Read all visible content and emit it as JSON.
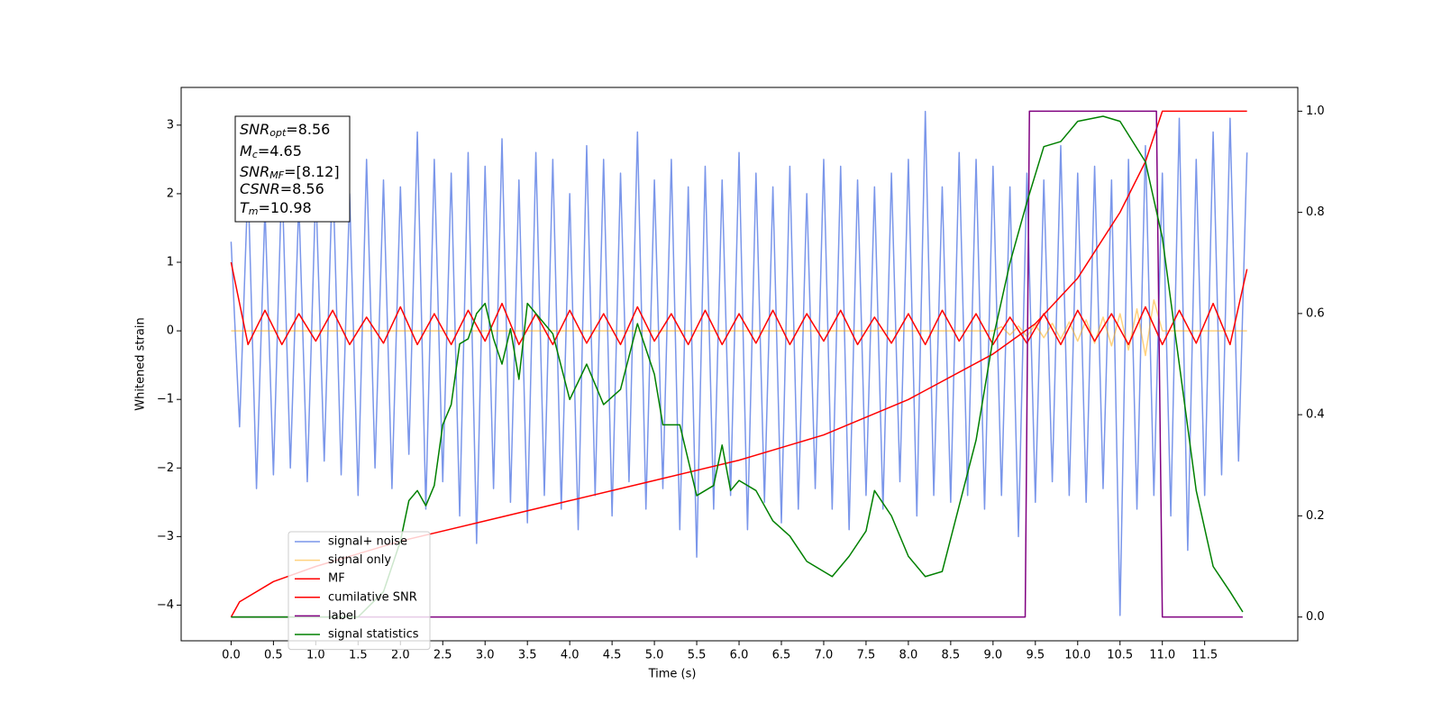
{
  "chart_data": {
    "type": "line",
    "xlabel": "Time (s)",
    "ylabel": "Whitened strain",
    "xlim": [
      -0.59,
      12.6
    ],
    "ylim": [
      -4.52,
      3.55
    ],
    "y2lim": [
      -0.047,
      1.047
    ],
    "xticks": [
      {
        "value": 0,
        "label": "0.0"
      },
      0.5,
      {
        "value": 1,
        "label": "1.0"
      },
      1.5,
      {
        "value": 2,
        "label": "2.0"
      },
      2.5,
      {
        "value": 3,
        "label": "3.0"
      },
      3.5,
      {
        "value": 4,
        "label": "4.0"
      },
      4.5,
      {
        "value": 5,
        "label": "5.0"
      },
      5.5,
      {
        "value": 6,
        "label": "6.0"
      },
      6.5,
      {
        "value": 7,
        "label": "7.0"
      },
      7.5,
      {
        "value": 8,
        "label": "8.0"
      },
      8.5,
      {
        "value": 9,
        "label": "9.0"
      },
      9.5,
      {
        "value": 10,
        "label": "10.0"
      },
      10.5,
      {
        "value": 11,
        "label": "11.0"
      },
      11.5
    ],
    "yticks": [
      {
        "value": -4,
        "label": "−4"
      },
      {
        "value": -3,
        "label": "−3"
      },
      {
        "value": -2,
        "label": "−2"
      },
      {
        "value": -1,
        "label": "−1"
      },
      0,
      1,
      2,
      3
    ],
    "y2ticks": [
      {
        "value": 0,
        "label": "0.0"
      },
      0.2,
      0.4,
      0.6,
      0.8,
      {
        "value": 1,
        "label": "1.0"
      }
    ],
    "legend": "lower left",
    "annotation": [
      {
        "symbol": "SNR",
        "sub": "opt",
        "text": "=8.56"
      },
      {
        "symbol": "M",
        "sub": "c",
        "text": "=4.65"
      },
      {
        "symbol": "SNR",
        "sub": "MF",
        "text": "=[8.12]"
      },
      {
        "symbol": "CSNR",
        "text": "=8.56"
      },
      {
        "symbol": "T",
        "sub": "m",
        "text": "=10.98"
      }
    ],
    "series": [
      {
        "name": "signal+ noise",
        "color": "#4169e1",
        "alpha": 0.7,
        "x": [
          0,
          0.1,
          0.2,
          0.3,
          0.4,
          0.5,
          0.6,
          0.7,
          0.8,
          0.9,
          1,
          1.1,
          1.2,
          1.3,
          1.4,
          1.5,
          1.6,
          1.7,
          1.8,
          1.9,
          2,
          2.1,
          2.2,
          2.3,
          2.4,
          2.5,
          2.6,
          2.7,
          2.8,
          2.9,
          3,
          3.1,
          3.2,
          3.3,
          3.4,
          3.5,
          3.6,
          3.7,
          3.8,
          3.9,
          4,
          4.1,
          4.2,
          4.3,
          4.4,
          4.5,
          4.6,
          4.7,
          4.8,
          4.9,
          5,
          5.1,
          5.2,
          5.3,
          5.4,
          5.5,
          5.6,
          5.7,
          5.8,
          5.9,
          6,
          6.1,
          6.2,
          6.3,
          6.4,
          6.5,
          6.6,
          6.7,
          6.8,
          6.9,
          7,
          7.1,
          7.2,
          7.3,
          7.4,
          7.5,
          7.6,
          7.7,
          7.8,
          7.9,
          8,
          8.1,
          8.2,
          8.3,
          8.4,
          8.5,
          8.6,
          8.7,
          8.8,
          8.9,
          9,
          9.1,
          9.2,
          9.3,
          9.4,
          9.5,
          9.6,
          9.7,
          9.8,
          9.9,
          10,
          10.1,
          10.2,
          10.3,
          10.4,
          10.5,
          10.6,
          10.7,
          10.8,
          10.9,
          11,
          11.1,
          11.2,
          11.3,
          11.4,
          11.5,
          11.6,
          11.7,
          11.8,
          11.9,
          12
        ],
        "values": [
          1.3,
          -1.4,
          2.2,
          -2.3,
          1.8,
          -2.1,
          2.3,
          -2.0,
          1.9,
          -2.2,
          2.1,
          -1.9,
          2.4,
          -2.1,
          2.0,
          -2.4,
          2.5,
          -2.0,
          2.2,
          -2.3,
          2.1,
          -1.8,
          2.9,
          -2.6,
          2.5,
          -2.2,
          2.3,
          -2.7,
          2.6,
          -3.1,
          2.4,
          -2.3,
          2.8,
          -2.5,
          2.2,
          -2.8,
          2.6,
          -2.4,
          2.5,
          -2.6,
          2.0,
          -2.9,
          2.7,
          -2.4,
          2.5,
          -2.7,
          2.3,
          -2.2,
          2.9,
          -2.6,
          2.2,
          -2.3,
          2.5,
          -2.9,
          2.1,
          -3.3,
          2.4,
          -2.6,
          2.2,
          -2.4,
          2.6,
          -2.9,
          2.3,
          -2.5,
          2.1,
          -2.8,
          2.4,
          -2.6,
          2.0,
          -2.3,
          2.5,
          -2.6,
          2.4,
          -2.9,
          2.2,
          -2.4,
          2.1,
          -2.6,
          2.3,
          -2.2,
          2.5,
          -2.7,
          3.2,
          -2.4,
          2.1,
          -2.5,
          2.6,
          -2.4,
          2.5,
          -2.6,
          2.4,
          -2.4,
          2.1,
          -3.0,
          2.3,
          -2.5,
          2.2,
          -2.2,
          2.7,
          -2.4,
          2.3,
          -2.5,
          2.4,
          -2.3,
          2.2,
          -4.15,
          2.5,
          -2.6,
          2.7,
          -2.4,
          2.3,
          -2.7,
          3.1,
          -3.2,
          2.5,
          -2.4,
          2.9,
          -2.1,
          3.1,
          -1.9,
          2.6
        ]
      },
      {
        "name": "signal only",
        "color": "#ffa500",
        "alpha": 0.5,
        "x": [
          0,
          9.0,
          9.1,
          9.2,
          9.3,
          9.4,
          9.5,
          9.6,
          9.7,
          9.8,
          9.9,
          10.0,
          10.1,
          10.2,
          10.3,
          10.4,
          10.5,
          10.6,
          10.7,
          10.8,
          10.9,
          11.0,
          12.0
        ],
        "values": [
          0,
          0,
          0.06,
          -0.06,
          0.07,
          -0.08,
          0.09,
          -0.1,
          0.11,
          -0.12,
          0.13,
          -0.15,
          0.16,
          -0.18,
          0.2,
          -0.22,
          0.25,
          -0.28,
          0.32,
          -0.36,
          0.45,
          0,
          0
        ]
      },
      {
        "name": "MF",
        "color": "#ff0000",
        "x": [
          0,
          0.2,
          0.4,
          0.6,
          0.8,
          1,
          1.2,
          1.4,
          1.6,
          1.8,
          2,
          2.2,
          2.4,
          2.6,
          2.8,
          3,
          3.2,
          3.4,
          3.6,
          3.8,
          4,
          4.2,
          4.4,
          4.6,
          4.8,
          5,
          5.2,
          5.4,
          5.6,
          5.8,
          6,
          6.2,
          6.4,
          6.6,
          6.8,
          7,
          7.2,
          7.4,
          7.6,
          7.8,
          8,
          8.2,
          8.4,
          8.6,
          8.8,
          9,
          9.2,
          9.4,
          9.6,
          9.8,
          10,
          10.2,
          10.4,
          10.6,
          10.8,
          11,
          11.2,
          11.4,
          11.6,
          11.8,
          12
        ],
        "values": [
          1.0,
          -0.2,
          0.3,
          -0.2,
          0.25,
          -0.15,
          0.3,
          -0.2,
          0.2,
          -0.18,
          0.35,
          -0.2,
          0.25,
          -0.2,
          0.3,
          -0.15,
          0.4,
          -0.2,
          0.25,
          -0.2,
          0.3,
          -0.18,
          0.25,
          -0.2,
          0.35,
          -0.15,
          0.25,
          -0.2,
          0.3,
          -0.2,
          0.25,
          -0.18,
          0.3,
          -0.2,
          0.25,
          -0.15,
          0.3,
          -0.2,
          0.2,
          -0.18,
          0.25,
          -0.2,
          0.3,
          -0.15,
          0.25,
          -0.2,
          0.2,
          -0.18,
          0.25,
          -0.2,
          0.3,
          -0.15,
          0.25,
          -0.2,
          0.35,
          -0.2,
          0.3,
          -0.18,
          0.4,
          -0.2,
          0.9
        ]
      },
      {
        "name": "cumilative SNR",
        "color": "#ff0000",
        "axis": "y2",
        "x": [
          0,
          0.1,
          0.5,
          1,
          2,
          3,
          4,
          5,
          6,
          7,
          8,
          9,
          9.5,
          10,
          10.5,
          10.8,
          11.0,
          12.0
        ],
        "values": [
          0,
          0.03,
          0.07,
          0.1,
          0.15,
          0.19,
          0.23,
          0.27,
          0.31,
          0.36,
          0.43,
          0.52,
          0.58,
          0.67,
          0.8,
          0.9,
          1,
          1
        ]
      },
      {
        "name": "label",
        "color": "#800080",
        "axis": "y2",
        "x": [
          0,
          9.38,
          9.43,
          10.93,
          11.0,
          11.95
        ],
        "values": [
          0,
          0,
          1,
          1,
          0,
          0
        ]
      },
      {
        "name": "signal statistics",
        "color": "#008000",
        "axis": "y2",
        "x": [
          0,
          1.5,
          1.8,
          2.0,
          2.1,
          2.2,
          2.3,
          2.4,
          2.5,
          2.6,
          2.7,
          2.8,
          2.9,
          3.0,
          3.1,
          3.2,
          3.3,
          3.4,
          3.5,
          3.6,
          3.8,
          4.0,
          4.2,
          4.4,
          4.6,
          4.8,
          5.0,
          5.1,
          5.3,
          5.5,
          5.7,
          5.8,
          5.9,
          6.0,
          6.2,
          6.4,
          6.6,
          6.8,
          7.0,
          7.1,
          7.3,
          7.5,
          7.6,
          7.8,
          8.0,
          8.2,
          8.4,
          8.6,
          8.8,
          9.0,
          9.2,
          9.4,
          9.6,
          9.8,
          10.0,
          10.3,
          10.5,
          10.8,
          11.0,
          11.2,
          11.4,
          11.6,
          11.8,
          11.95
        ],
        "values": [
          0,
          0,
          0.05,
          0.15,
          0.23,
          0.25,
          0.22,
          0.26,
          0.38,
          0.42,
          0.54,
          0.55,
          0.6,
          0.62,
          0.55,
          0.5,
          0.57,
          0.47,
          0.62,
          0.6,
          0.56,
          0.43,
          0.5,
          0.42,
          0.45,
          0.58,
          0.48,
          0.38,
          0.38,
          0.24,
          0.26,
          0.34,
          0.25,
          0.27,
          0.25,
          0.19,
          0.16,
          0.11,
          0.09,
          0.08,
          0.12,
          0.17,
          0.25,
          0.2,
          0.12,
          0.08,
          0.09,
          0.22,
          0.35,
          0.55,
          0.7,
          0.82,
          0.93,
          0.94,
          0.98,
          0.99,
          0.98,
          0.9,
          0.75,
          0.5,
          0.25,
          0.1,
          0.05,
          0.01
        ]
      }
    ]
  }
}
